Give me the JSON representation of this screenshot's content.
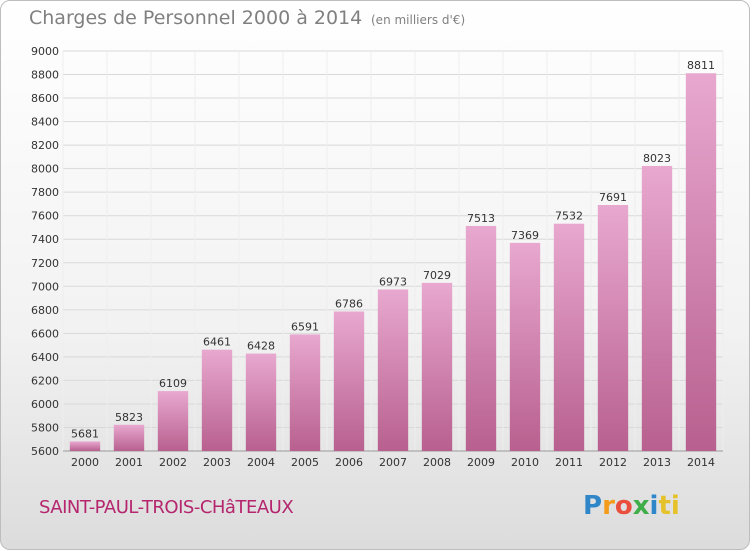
{
  "title": "Charges de Personnel 2000 à 2014",
  "subtitle": "(en milliers d'€)",
  "commune": "SAINT-PAUL-TROIS-CHâTEAUX",
  "logo": {
    "text": "Proxiti",
    "letters": [
      "P",
      "r",
      "o",
      "x",
      "i",
      "t",
      "i"
    ]
  },
  "colors": {
    "bar_top": "#e8a8cf",
    "bar_bottom": "#b8608f",
    "grid": "#d9d9d9",
    "axis_text": "#333333"
  },
  "chart_data": {
    "type": "bar",
    "title": "Charges de Personnel 2000 à 2014",
    "xlabel": "",
    "ylabel": "(en milliers d'€)",
    "categories": [
      "2000",
      "2001",
      "2002",
      "2003",
      "2004",
      "2005",
      "2006",
      "2007",
      "2008",
      "2009",
      "2010",
      "2011",
      "2012",
      "2013",
      "2014"
    ],
    "values": [
      5681,
      5823,
      6109,
      6461,
      6428,
      6591,
      6786,
      6973,
      7029,
      7513,
      7369,
      7532,
      7691,
      8023,
      8811
    ],
    "ylim": [
      5600,
      9000
    ],
    "yticks": [
      5600,
      5800,
      6000,
      6200,
      6400,
      6600,
      6800,
      7000,
      7200,
      7400,
      7600,
      7800,
      8000,
      8200,
      8400,
      8600,
      8800,
      9000
    ],
    "grid": true
  }
}
